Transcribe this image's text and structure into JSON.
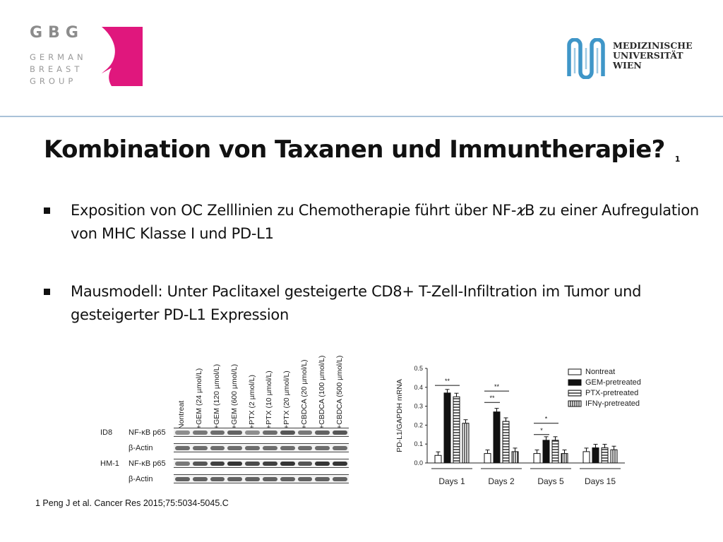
{
  "header": {
    "gbg_logo": {
      "abbr": "GBG",
      "line1": "GERMAN",
      "line2": "BREAST",
      "line3": "GROUP",
      "accent": "#e0177d"
    },
    "muw_logo": {
      "line1": "MEDIZINISCHE",
      "line2": "UNIVERSITÄT",
      "line3": "WIEN",
      "accent": "#3f96c8"
    }
  },
  "slide": {
    "title": "Kombination von Taxanen und Immuntherapie?",
    "title_ref": "1",
    "bullets": [
      {
        "text": "Exposition von OC Zelllinien zu Chemotherapie führt über NF-𝜘B zu einer Aufregulation von MHC Klasse I und PD-L1"
      },
      {
        "text": "Mausmodell: Unter Paclitaxel gesteigerte CD8+ T-Zell-Infiltration im Tumor und gesteigerter PD-L1 Expression"
      }
    ],
    "footnote": "1 Peng J et al. Cancer Res 2015;75:5034-5045.C"
  },
  "blot": {
    "lanes": [
      "Nontreat",
      "+GEM (24 µmol/L)",
      "+GEM (120 µmol/L)",
      "+GEM (600 µmol/L)",
      "+PTX (2 µmol/L)",
      "+PTX (10 µmol/L)",
      "+PTX (20 µmol/L)",
      "+CBDCA (20 µmol/L)",
      "+CBDCA (100 µmol/L)",
      "+CBDCA (500 µmol/L)"
    ],
    "rows": [
      {
        "cell_line": "ID8",
        "protein": "NF-κB p65"
      },
      {
        "cell_line": "",
        "protein": "β-Actin"
      },
      {
        "cell_line": "HM-1",
        "protein": "NF-κB p65"
      },
      {
        "cell_line": "",
        "protein": "β-Actin"
      }
    ]
  },
  "chart_data": {
    "type": "bar",
    "ylabel": "PD-L1/GAPDH mRNA",
    "ylim": [
      0,
      0.5
    ],
    "yticks": [
      "0.0",
      "0.1",
      "0.2",
      "0.3",
      "0.4",
      "0.5"
    ],
    "categories": [
      "Days 1",
      "Days 2",
      "Days 5",
      "Days 15"
    ],
    "series": [
      {
        "name": "Nontreat",
        "values": [
          0.04,
          0.05,
          0.05,
          0.06
        ]
      },
      {
        "name": "GEM-pretreated",
        "values": [
          0.37,
          0.27,
          0.12,
          0.08
        ]
      },
      {
        "name": "PTX-pretreated",
        "values": [
          0.35,
          0.22,
          0.12,
          0.08
        ]
      },
      {
        "name": "IFNγ-pretreated",
        "values": [
          0.21,
          0.06,
          0.05,
          0.07
        ]
      }
    ],
    "significance": [
      {
        "category": "Days 1",
        "label": "**"
      },
      {
        "category": "Days 2",
        "label": "**"
      },
      {
        "category": "Days 2",
        "label": "**"
      },
      {
        "category": "Days 5",
        "label": "*"
      },
      {
        "category": "Days 5",
        "label": "*"
      }
    ],
    "legend_position": "top-right",
    "grid": false
  }
}
